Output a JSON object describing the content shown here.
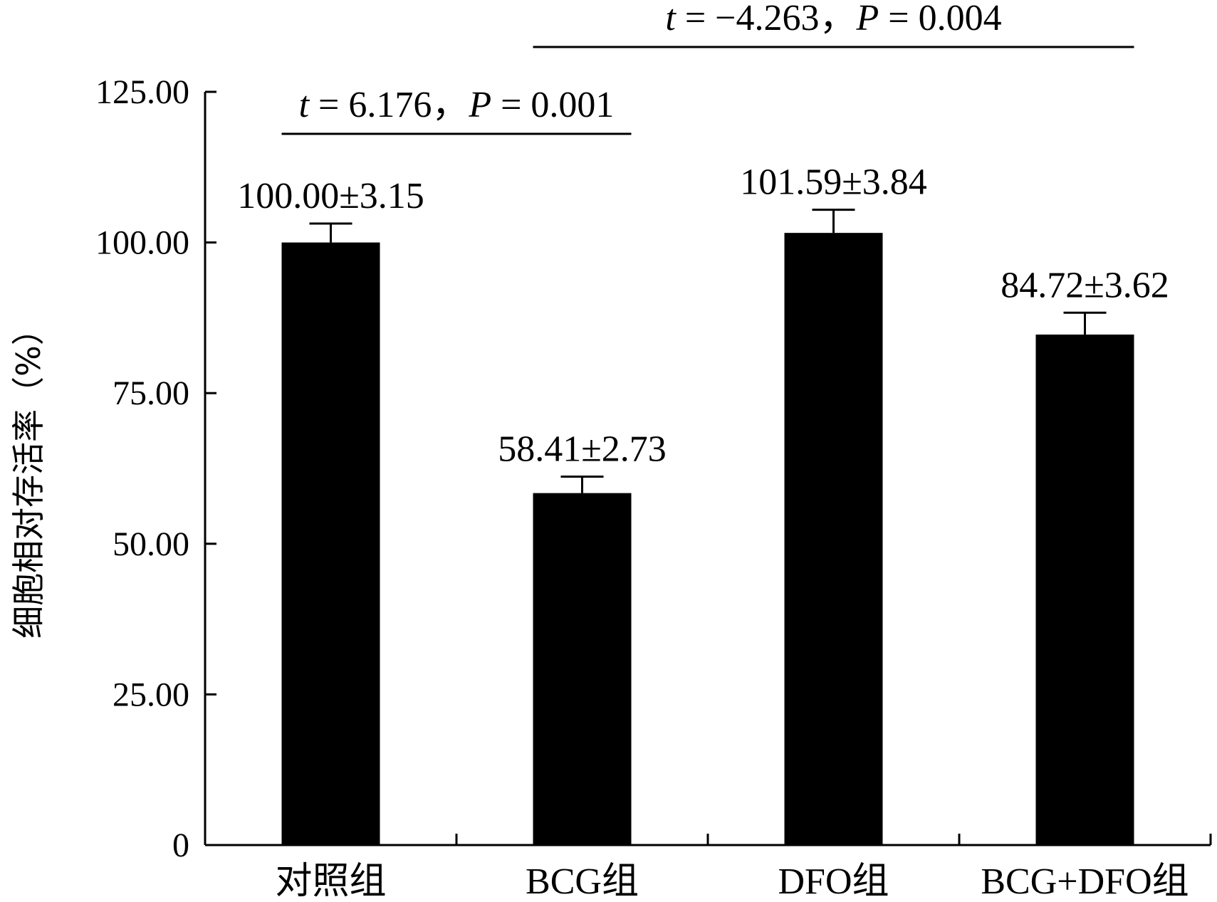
{
  "chart_data": {
    "type": "bar",
    "ylabel": "细胞相对存活率（%）",
    "ylim": [
      0,
      125
    ],
    "yticks": [
      0,
      25,
      50,
      75,
      100,
      125
    ],
    "ytick_labels": [
      "0",
      "25.00",
      "50.00",
      "75.00",
      "100.00",
      "125.00"
    ],
    "categories": [
      "对照组",
      "BCG组",
      "DFO组",
      "BCG+DFO组"
    ],
    "values": [
      100.0,
      58.41,
      101.59,
      84.72
    ],
    "errors": [
      3.15,
      2.73,
      3.84,
      3.62
    ],
    "bar_labels": [
      "100.00±3.15",
      "58.41±2.73",
      "101.59±3.84",
      "84.72±3.62"
    ],
    "colors": {
      "bar": "#000000",
      "axis": "#000000"
    },
    "comparisons": [
      {
        "between": [
          0,
          1
        ],
        "t": "6.176",
        "P": "0.001",
        "label": "t = 6.176，P = 0.001"
      },
      {
        "between": [
          1,
          3
        ],
        "t": "−4.263",
        "P": "0.004",
        "label": "t = −4.263，P = 0.004"
      }
    ]
  }
}
